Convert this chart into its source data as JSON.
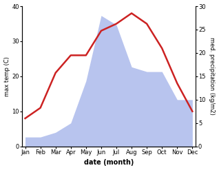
{
  "months": [
    "Jan",
    "Feb",
    "Mar",
    "Apr",
    "May",
    "Jun",
    "Jul",
    "Aug",
    "Sep",
    "Oct",
    "Nov",
    "Dec"
  ],
  "temp": [
    8,
    11,
    21,
    26,
    26,
    33,
    35,
    38,
    35,
    28,
    18,
    10
  ],
  "precip": [
    2,
    2,
    3,
    5,
    14,
    28,
    26,
    17,
    16,
    16,
    10,
    10
  ],
  "temp_color": "#cc2222",
  "precip_color": "#b8c4ee",
  "temp_ylim": [
    0,
    40
  ],
  "precip_ylim": [
    0,
    30
  ],
  "temp_yticks": [
    0,
    10,
    20,
    30,
    40
  ],
  "precip_yticks": [
    0,
    5,
    10,
    15,
    20,
    25,
    30
  ],
  "ylabel_left": "max temp (C)",
  "ylabel_right": "med. precipitation (kg/m2)",
  "xlabel": "date (month)",
  "bg_color": "#ffffff",
  "line_width": 1.8,
  "figsize": [
    3.18,
    2.47
  ],
  "dpi": 100
}
